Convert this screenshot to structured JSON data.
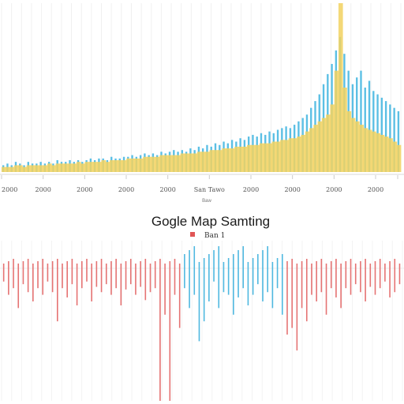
{
  "title": "Gogle Map Samting",
  "chart_data": [
    {
      "type": "bar",
      "title": "",
      "xlabel": "Baw",
      "ylabel": "",
      "x_tick_labels": [
        "2000",
        "2000",
        "2000",
        "2000",
        "2000",
        "San Tawo",
        "2000",
        "2000",
        "2000",
        "2000"
      ],
      "ylim": [
        0,
        100
      ],
      "grid": true,
      "series": [
        {
          "color": "#5bbfe4",
          "values": [
            4,
            5,
            4,
            6,
            5,
            4,
            6,
            5,
            5,
            6,
            5,
            6,
            5,
            7,
            6,
            6,
            7,
            6,
            7,
            6,
            7,
            8,
            7,
            8,
            8,
            7,
            9,
            8,
            8,
            9,
            9,
            10,
            9,
            10,
            11,
            10,
            11,
            10,
            12,
            11,
            12,
            13,
            12,
            13,
            12,
            14,
            13,
            15,
            14,
            16,
            15,
            17,
            16,
            18,
            17,
            19,
            18,
            20,
            19,
            21,
            22,
            21,
            23,
            22,
            24,
            23,
            25,
            26,
            27,
            26,
            28,
            30,
            32,
            34,
            38,
            42,
            46,
            52,
            58,
            64,
            72,
            80,
            70,
            60,
            52,
            56,
            60,
            50,
            54,
            48,
            46,
            44,
            42,
            40,
            38,
            36
          ]
        },
        {
          "color": "#f2d260",
          "values": [
            3,
            3,
            3,
            4,
            4,
            3,
            4,
            4,
            4,
            4,
            4,
            5,
            4,
            5,
            5,
            5,
            5,
            5,
            6,
            5,
            6,
            6,
            6,
            6,
            7,
            6,
            7,
            7,
            7,
            7,
            8,
            8,
            8,
            8,
            9,
            9,
            9,
            9,
            10,
            10,
            10,
            10,
            10,
            11,
            11,
            11,
            11,
            12,
            12,
            12,
            13,
            13,
            13,
            14,
            14,
            14,
            15,
            15,
            15,
            16,
            16,
            16,
            17,
            17,
            17,
            18,
            18,
            19,
            19,
            20,
            20,
            21,
            22,
            24,
            26,
            28,
            30,
            32,
            34,
            40,
            60,
            100,
            50,
            36,
            32,
            30,
            28,
            26,
            25,
            24,
            23,
            22,
            21,
            20,
            18,
            16
          ]
        }
      ]
    },
    {
      "type": "bar",
      "title": "Gogle Map Samting",
      "legend": {
        "position": "top-center",
        "entries": [
          {
            "label": "Ban 1",
            "color": "#e05555"
          }
        ]
      },
      "ylim": [
        -100,
        40
      ],
      "grid": true,
      "series": [
        {
          "name": "Ban 1",
          "color": "#e57373",
          "highlight_color": "#4fb8e0",
          "highlight_range": [
            37,
            57
          ],
          "values": [
            -10,
            -20,
            -15,
            -30,
            -12,
            -18,
            -25,
            -15,
            -20,
            -10,
            -18,
            -40,
            -15,
            -22,
            -12,
            -28,
            -15,
            -10,
            -25,
            -14,
            -18,
            -12,
            -20,
            -15,
            -28,
            -16,
            -12,
            -20,
            -14,
            -24,
            -18,
            -15,
            -100,
            -35,
            -100,
            -20,
            -45,
            -15,
            -30,
            -20,
            -55,
            -40,
            -25,
            -10,
            -30,
            -18,
            -20,
            -35,
            -22,
            -15,
            -28,
            -20,
            -12,
            -25,
            -18,
            -30,
            -15,
            -35,
            -50,
            -45,
            -62,
            -30,
            -40,
            -20,
            -25,
            -18,
            -35,
            -15,
            -22,
            -30,
            -15,
            -20,
            -12,
            -18,
            -25,
            -14,
            -20,
            -15,
            -10,
            -22,
            -18,
            -12
          ]
        }
      ]
    }
  ]
}
